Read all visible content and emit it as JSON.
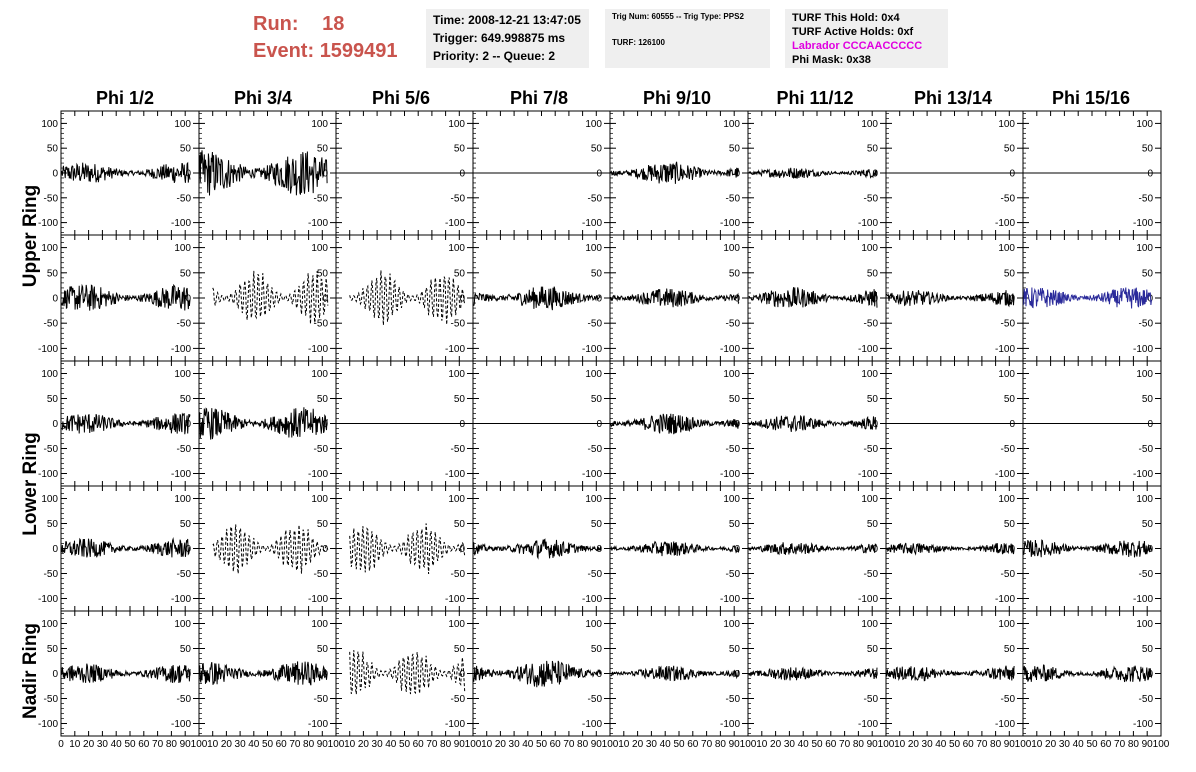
{
  "header": {
    "run_label": "Run:",
    "run_value": "18",
    "event_label": "Event:",
    "event_value": "1599491",
    "time_box": {
      "line1": "Time: 2008-12-21 13:47:05",
      "line2": "Trigger: 649.998875 ms",
      "line3": "Priority: 2 -- Queue: 2"
    },
    "trig_box": {
      "line1": "Trig Num: 60555 -- Trig Type: PPS2",
      "line2": "TURF: 126100"
    },
    "turf_box": {
      "line1": "TURF This Hold: 0x4",
      "line2": "TURF Active Holds: 0xf",
      "line3": "Labrador CCCAACCCCC",
      "line4": "Phi Mask: 0x38"
    },
    "labrador_color": "#e000e0"
  },
  "columns": [
    "Phi 1/2",
    "Phi 3/4",
    "Phi 5/6",
    "Phi 7/8",
    "Phi 9/10",
    "Phi 11/12",
    "Phi 13/14",
    "Phi 15/16"
  ],
  "ring_labels": [
    "Upper Ring",
    "Lower Ring",
    "Nadir Ring"
  ],
  "chart_data": {
    "type": "line",
    "grid": false,
    "xlim": [
      0,
      100
    ],
    "ylim": [
      -125,
      125
    ],
    "y_ticks": [
      -100,
      -50,
      0,
      50,
      100
    ],
    "x_tick_labels_first": [
      "0",
      "10",
      "20",
      "30",
      "40",
      "50",
      "60",
      "70",
      "80",
      "90",
      "100"
    ],
    "x_tick_labels_other": [
      "10",
      "20",
      "30",
      "40",
      "50",
      "60",
      "70",
      "80",
      "90",
      "100"
    ],
    "line_color": "#000000",
    "highlight_color": "#2a2a9a",
    "panel_rows": [
      {
        "ring": "Upper Ring",
        "panels": [
          {
            "amp": 22,
            "style": "solid"
          },
          {
            "amp": 48,
            "style": "solid"
          },
          {
            "amp": 0,
            "style": "flat"
          },
          {
            "amp": 0,
            "style": "flat"
          },
          {
            "amp": 24,
            "style": "solid"
          },
          {
            "amp": 12,
            "style": "solid"
          },
          {
            "amp": 0,
            "style": "flat"
          },
          {
            "amp": 0,
            "style": "flat"
          }
        ]
      },
      {
        "ring": "Upper Ring",
        "panels": [
          {
            "amp": 28,
            "style": "solid"
          },
          {
            "amp": 58,
            "style": "dashed"
          },
          {
            "amp": 58,
            "style": "dashed"
          },
          {
            "amp": 25,
            "style": "solid"
          },
          {
            "amp": 20,
            "style": "solid"
          },
          {
            "amp": 22,
            "style": "solid"
          },
          {
            "amp": 16,
            "style": "solid"
          },
          {
            "amp": 22,
            "style": "highlight"
          }
        ]
      },
      {
        "ring": "Lower Ring",
        "panels": [
          {
            "amp": 22,
            "style": "solid"
          },
          {
            "amp": 33,
            "style": "solid"
          },
          {
            "amp": 0,
            "style": "flat"
          },
          {
            "amp": 0,
            "style": "flat"
          },
          {
            "amp": 22,
            "style": "solid"
          },
          {
            "amp": 18,
            "style": "solid"
          },
          {
            "amp": 0,
            "style": "flat"
          },
          {
            "amp": 0,
            "style": "flat"
          }
        ]
      },
      {
        "ring": "Lower Ring",
        "panels": [
          {
            "amp": 20,
            "style": "solid"
          },
          {
            "amp": 56,
            "style": "dashed"
          },
          {
            "amp": 56,
            "style": "dashed"
          },
          {
            "amp": 20,
            "style": "solid"
          },
          {
            "amp": 16,
            "style": "solid"
          },
          {
            "amp": 14,
            "style": "solid"
          },
          {
            "amp": 12,
            "style": "solid"
          },
          {
            "amp": 18,
            "style": "solid"
          }
        ]
      },
      {
        "ring": "Nadir Ring",
        "panels": [
          {
            "amp": 20,
            "style": "solid"
          },
          {
            "amp": 25,
            "style": "solid"
          },
          {
            "amp": 55,
            "style": "dashed"
          },
          {
            "amp": 30,
            "style": "solid"
          },
          {
            "amp": 16,
            "style": "solid"
          },
          {
            "amp": 14,
            "style": "solid"
          },
          {
            "amp": 16,
            "style": "solid"
          },
          {
            "amp": 18,
            "style": "solid"
          }
        ]
      }
    ]
  }
}
